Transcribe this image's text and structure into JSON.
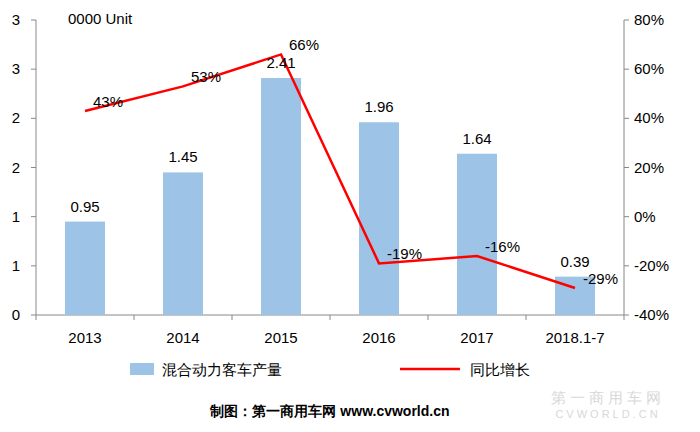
{
  "chart_data": {
    "type": "bar",
    "ylabel": "0000 Unit",
    "categories": [
      "2013",
      "2014",
      "2015",
      "2016",
      "2017",
      "2018.1-7"
    ],
    "series": [
      {
        "name": "混合动力客车产量",
        "type": "bar",
        "color": "#9DC3E6",
        "values": [
          0.95,
          1.45,
          2.41,
          1.96,
          1.64,
          0.39
        ]
      },
      {
        "name": "同比增长",
        "type": "line",
        "color": "#FF0000",
        "axis": "y2",
        "values": [
          43,
          53,
          66,
          -19,
          -16,
          -29
        ],
        "value_labels": [
          "43%",
          "53%",
          "66%",
          "-19%",
          "-16%",
          "-29%"
        ]
      }
    ],
    "data_labels": true,
    "ylim": [
      0,
      3
    ],
    "yticks": [
      0,
      {
        "value": 0.5,
        "label": "1"
      },
      1,
      {
        "value": 1.5,
        "label": "2"
      },
      2,
      {
        "value": 2.5,
        "label": "3"
      },
      3
    ],
    "y2lim": [
      -40,
      80
    ],
    "y2ticks": [
      {
        "value": -40,
        "label": "-40%"
      },
      {
        "value": -20,
        "label": "-20%"
      },
      {
        "value": 0,
        "label": "0%"
      },
      {
        "value": 20,
        "label": "20%"
      },
      {
        "value": 40,
        "label": "40%"
      },
      {
        "value": 60,
        "label": "60%"
      },
      {
        "value": 80,
        "label": "80%"
      }
    ],
    "grid": false,
    "legend": "bottom",
    "source": "制图：第一商用车网 www.cvworld.cn",
    "watermark": [
      "第一商用车网",
      "CVWORLD.CN"
    ]
  }
}
